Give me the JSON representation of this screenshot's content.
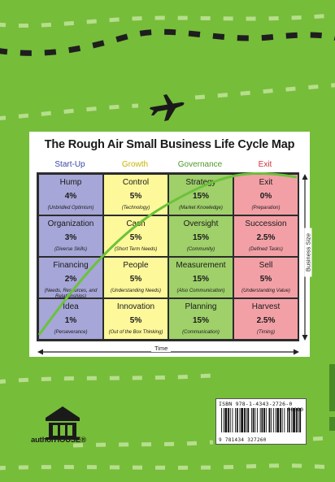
{
  "title": "The Rough Air Small Business Life Cycle Map",
  "columns": [
    {
      "label": "Start-Up",
      "color": "#3a46a8",
      "fill": "#a6a6d8"
    },
    {
      "label": "Growth",
      "color": "#c8b400",
      "fill": "#fdf89a"
    },
    {
      "label": "Governance",
      "color": "#4e9a2a",
      "fill": "#9fd06a"
    },
    {
      "label": "Exit",
      "color": "#d2323c",
      "fill": "#f2a0a6"
    }
  ],
  "rows": [
    [
      {
        "name": "Hump",
        "pct": "4%",
        "sub": "(Unbridled Optimism)"
      },
      {
        "name": "Control",
        "pct": "5%",
        "sub": "(Technology)"
      },
      {
        "name": "Strategy",
        "pct": "15%",
        "sub": "(Market Knowledge)"
      },
      {
        "name": "Exit",
        "pct": "0%",
        "sub": "(Preparation)"
      }
    ],
    [
      {
        "name": "Organization",
        "pct": "3%",
        "sub": "(Diverse Skills)"
      },
      {
        "name": "Cash",
        "pct": "5%",
        "sub": "(Short Term Needs)"
      },
      {
        "name": "Oversight",
        "pct": "15%",
        "sub": "(Community)"
      },
      {
        "name": "Succession",
        "pct": "2.5%",
        "sub": "(Defined Tasks)"
      }
    ],
    [
      {
        "name": "Financing",
        "pct": "2%",
        "sub": "(Needs, Resources, and Relationships)"
      },
      {
        "name": "People",
        "pct": "5%",
        "sub": "(Understanding Needs)"
      },
      {
        "name": "Measurement",
        "pct": "15%",
        "sub": "(Also Communication)"
      },
      {
        "name": "Sell",
        "pct": "5%",
        "sub": "(Understanding Value)"
      }
    ],
    [
      {
        "name": "Idea",
        "pct": "1%",
        "sub": "(Perseverance)"
      },
      {
        "name": "Innovation",
        "pct": "5%",
        "sub": "(Out of the Box Thinking)"
      },
      {
        "name": "Planning",
        "pct": "15%",
        "sub": "(Communication)"
      },
      {
        "name": "Harvest",
        "pct": "2.5%",
        "sub": "(Timing)"
      }
    ]
  ],
  "axes": {
    "x_label": "Time",
    "y_label": "Business Size"
  },
  "publisher": {
    "name": "authorHOUSE®"
  },
  "barcode": {
    "isbn": "ISBN 978-1-4343-2726-0",
    "price_code": "90000",
    "number": "9 781434 327260"
  },
  "colors": {
    "background": "#76bd3a",
    "dash": "#1e1e1e",
    "curve": "#6cc23a"
  }
}
